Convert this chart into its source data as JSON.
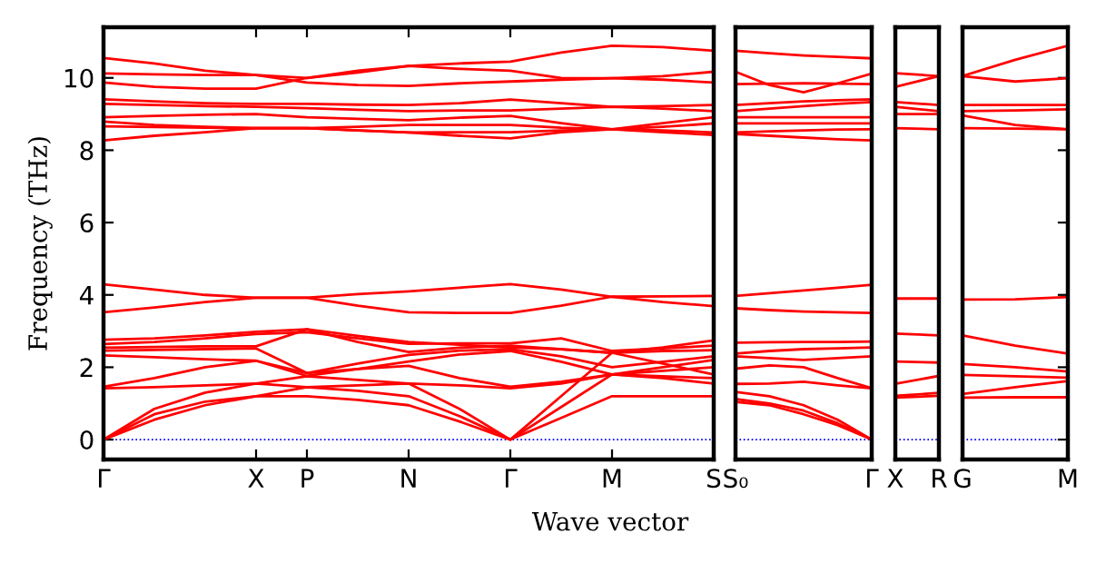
{
  "chart_data": [
    {
      "type": "line",
      "ylabel": "Frequency (THz)",
      "xlabel": "Wave vector",
      "ylim": [
        -0.55,
        11.4
      ],
      "yticks": [
        0,
        2,
        4,
        6,
        8,
        10
      ],
      "categories": [
        "Γ",
        null,
        null,
        "X",
        "P",
        null,
        "N",
        null,
        "Γ",
        null,
        "M",
        null,
        "S"
      ],
      "ref_lines": [
        {
          "axis": "y",
          "value": 0,
          "color": "#0000ff",
          "line_style": "dotted"
        }
      ],
      "series": [
        {
          "color": "#ff0000",
          "values": [
            0,
            0.55,
            0.95,
            1.2,
            1.2,
            1.1,
            0.95,
            0.5,
            0,
            0.6,
            1.2,
            1.2,
            1.2
          ]
        },
        {
          "color": "#ff0000",
          "values": [
            0,
            0.7,
            1.05,
            1.2,
            1.45,
            1.35,
            1.2,
            0.65,
            0,
            0.9,
            1.8,
            1.7,
            1.55
          ]
        },
        {
          "color": "#ff0000",
          "values": [
            0,
            0.85,
            1.3,
            1.55,
            1.75,
            1.65,
            1.55,
            0.85,
            0,
            1.2,
            2.4,
            2.1,
            1.8
          ]
        },
        {
          "color": "#ff0000",
          "values": [
            1.42,
            1.45,
            1.5,
            1.55,
            1.45,
            1.5,
            1.55,
            1.5,
            1.42,
            1.55,
            1.8,
            1.75,
            1.7
          ]
        },
        {
          "color": "#ff0000",
          "values": [
            1.46,
            1.7,
            2.0,
            2.18,
            1.84,
            1.95,
            2.04,
            1.7,
            1.46,
            1.6,
            1.8,
            1.9,
            2.0
          ]
        },
        {
          "color": "#ff0000",
          "values": [
            2.33,
            2.28,
            2.22,
            2.18,
            1.76,
            1.95,
            2.16,
            2.35,
            2.45,
            2.15,
            1.8,
            2.0,
            2.2
          ]
        },
        {
          "color": "#ff0000",
          "values": [
            2.46,
            2.48,
            2.5,
            2.52,
            1.84,
            2.1,
            2.34,
            2.46,
            2.5,
            2.3,
            2.0,
            2.15,
            2.3
          ]
        },
        {
          "color": "#ff0000",
          "values": [
            2.54,
            2.56,
            2.58,
            2.58,
            3.05,
            2.7,
            2.42,
            2.54,
            2.6,
            2.5,
            2.4,
            2.45,
            2.47
          ]
        },
        {
          "color": "#ff0000",
          "values": [
            2.76,
            2.8,
            2.88,
            2.98,
            3.05,
            2.87,
            2.7,
            2.62,
            2.55,
            2.5,
            2.4,
            2.55,
            2.74
          ]
        },
        {
          "color": "#ff0000",
          "values": [
            2.64,
            2.7,
            2.8,
            2.92,
            2.97,
            2.8,
            2.65,
            2.66,
            2.66,
            2.8,
            2.45,
            2.52,
            2.6
          ]
        },
        {
          "color": "#ff0000",
          "values": [
            4.29,
            4.15,
            4.0,
            3.92,
            3.92,
            4.02,
            4.1,
            4.2,
            4.3,
            4.15,
            3.95,
            3.96,
            3.97
          ]
        },
        {
          "color": "#ff0000",
          "values": [
            3.52,
            3.65,
            3.8,
            3.92,
            3.92,
            3.7,
            3.52,
            3.5,
            3.5,
            3.7,
            3.95,
            3.8,
            3.69
          ]
        },
        {
          "color": "#ff0000",
          "values": [
            10.55,
            10.4,
            10.2,
            10.08,
            10.0,
            10.15,
            10.33,
            10.4,
            10.45,
            10.7,
            10.89,
            10.85,
            10.75
          ]
        },
        {
          "color": "#ff0000",
          "values": [
            10.12,
            10.1,
            10.08,
            10.08,
            9.87,
            9.8,
            9.78,
            9.85,
            9.9,
            9.95,
            9.99,
            10.05,
            10.17
          ]
        },
        {
          "color": "#ff0000",
          "values": [
            9.87,
            9.75,
            9.7,
            9.7,
            10.0,
            10.2,
            10.33,
            10.25,
            10.2,
            10.0,
            9.99,
            9.95,
            9.87
          ]
        },
        {
          "color": "#ff0000",
          "values": [
            9.41,
            9.35,
            9.3,
            9.28,
            9.28,
            9.26,
            9.25,
            9.3,
            9.4,
            9.3,
            9.2,
            9.22,
            9.25
          ]
        },
        {
          "color": "#ff0000",
          "values": [
            9.28,
            9.25,
            9.22,
            9.2,
            9.16,
            9.12,
            9.08,
            9.1,
            9.1,
            9.15,
            9.2,
            9.15,
            9.08
          ]
        },
        {
          "color": "#ff0000",
          "values": [
            8.91,
            8.95,
            8.98,
            9.0,
            8.91,
            8.87,
            8.83,
            8.9,
            8.95,
            8.75,
            8.58,
            8.75,
            8.91
          ]
        },
        {
          "color": "#ff0000",
          "values": [
            8.79,
            8.7,
            8.65,
            8.61,
            8.61,
            8.65,
            8.7,
            8.7,
            8.7,
            8.62,
            8.58,
            8.65,
            8.74
          ]
        },
        {
          "color": "#ff0000",
          "values": [
            8.66,
            8.64,
            8.62,
            8.61,
            8.61,
            8.55,
            8.49,
            8.5,
            8.5,
            8.55,
            8.58,
            8.55,
            8.49
          ]
        },
        {
          "color": "#ff0000",
          "values": [
            8.27,
            8.4,
            8.5,
            8.61,
            8.61,
            8.55,
            8.49,
            8.4,
            8.33,
            8.5,
            8.58,
            8.5,
            8.42
          ]
        }
      ]
    },
    {
      "type": "line",
      "tick_labels": "x",
      "ylim": [
        -0.55,
        11.4
      ],
      "categories": [
        "S₀",
        null,
        null,
        null,
        "Γ"
      ],
      "ref_lines": [
        {
          "axis": "y",
          "value": 0,
          "color": "#0000ff",
          "line_style": "dotted"
        }
      ],
      "series": [
        {
          "color": "#ff0000",
          "values": [
            2.68,
            2.69,
            2.7,
            2.7,
            2.71
          ]
        },
        {
          "color": "#ff0000",
          "values": [
            2.38,
            2.45,
            2.5,
            2.52,
            2.55
          ]
        },
        {
          "color": "#ff0000",
          "values": [
            2.3,
            2.25,
            2.2,
            2.25,
            2.3
          ]
        },
        {
          "color": "#ff0000",
          "values": [
            1.96,
            2.05,
            2.0,
            1.7,
            1.42
          ]
        },
        {
          "color": "#ff0000",
          "values": [
            1.54,
            1.55,
            1.6,
            1.5,
            1.42
          ]
        },
        {
          "color": "#ff0000",
          "values": [
            1.32,
            1.2,
            0.95,
            0.55,
            0
          ]
        },
        {
          "color": "#ff0000",
          "values": [
            1.12,
            1.0,
            0.8,
            0.45,
            0
          ]
        },
        {
          "color": "#ff0000",
          "values": [
            1.04,
            0.95,
            0.7,
            0.4,
            0
          ]
        },
        {
          "color": "#ff0000",
          "values": [
            3.97,
            4.05,
            4.12,
            4.2,
            4.28
          ]
        },
        {
          "color": "#ff0000",
          "values": [
            3.63,
            3.58,
            3.54,
            3.52,
            3.5
          ]
        },
        {
          "color": "#ff0000",
          "values": [
            10.75,
            10.68,
            10.62,
            10.58,
            10.54
          ]
        },
        {
          "color": "#ff0000",
          "values": [
            10.17,
            9.8,
            9.6,
            9.85,
            10.12
          ]
        },
        {
          "color": "#ff0000",
          "values": [
            9.83,
            9.84,
            9.85,
            9.84,
            9.83
          ]
        },
        {
          "color": "#ff0000",
          "values": [
            9.25,
            9.3,
            9.35,
            9.38,
            9.41
          ]
        },
        {
          "color": "#ff0000",
          "values": [
            9.08,
            9.15,
            9.22,
            9.28,
            9.33
          ]
        },
        {
          "color": "#ff0000",
          "values": [
            8.91,
            8.91,
            8.91,
            8.91,
            8.91
          ]
        },
        {
          "color": "#ff0000",
          "values": [
            8.74,
            8.74,
            8.74,
            8.74,
            8.74
          ]
        },
        {
          "color": "#ff0000",
          "values": [
            8.49,
            8.52,
            8.55,
            8.57,
            8.58
          ]
        },
        {
          "color": "#ff0000",
          "values": [
            8.45,
            8.4,
            8.35,
            8.3,
            8.27
          ]
        }
      ]
    },
    {
      "type": "line",
      "tick_labels": "x",
      "ylim": [
        -0.55,
        11.4
      ],
      "categories": [
        "X",
        "R"
      ],
      "ref_lines": [
        {
          "axis": "y",
          "value": 0,
          "color": "#0000ff",
          "line_style": "dotted"
        }
      ],
      "series": [
        {
          "color": "#ff0000",
          "values": [
            2.93,
            2.88
          ]
        },
        {
          "color": "#ff0000",
          "values": [
            2.16,
            2.13
          ]
        },
        {
          "color": "#ff0000",
          "values": [
            1.54,
            1.76
          ]
        },
        {
          "color": "#ff0000",
          "values": [
            1.21,
            1.29
          ]
        },
        {
          "color": "#ff0000",
          "values": [
            1.16,
            1.21
          ]
        },
        {
          "color": "#ff0000",
          "values": [
            3.9,
            3.9
          ]
        },
        {
          "color": "#ff0000",
          "values": [
            10.13,
            10.05
          ]
        },
        {
          "color": "#ff0000",
          "values": [
            9.75,
            10.05
          ]
        },
        {
          "color": "#ff0000",
          "values": [
            9.33,
            9.25
          ]
        },
        {
          "color": "#ff0000",
          "values": [
            9.2,
            9.08
          ]
        },
        {
          "color": "#ff0000",
          "values": [
            9.0,
            9.0
          ]
        },
        {
          "color": "#ff0000",
          "values": [
            8.61,
            8.58
          ]
        }
      ]
    },
    {
      "type": "line",
      "tick_labels": "x",
      "ylim": [
        -0.55,
        11.4
      ],
      "yticks": [
        {
          "value": 0,
          "label": null
        },
        {
          "value": 2,
          "label": null
        },
        {
          "value": 4,
          "label": null
        },
        {
          "value": 6,
          "label": null
        },
        {
          "value": 8,
          "label": null
        },
        {
          "value": 10,
          "label": null
        }
      ],
      "categories": [
        "G",
        null,
        "M"
      ],
      "ref_lines": [
        {
          "axis": "y",
          "value": 0,
          "color": "#0000ff",
          "line_style": "dotted"
        }
      ],
      "series": [
        {
          "color": "#ff0000",
          "values": [
            2.88,
            2.6,
            2.38
          ]
        },
        {
          "color": "#ff0000",
          "values": [
            2.09,
            2.0,
            1.88
          ]
        },
        {
          "color": "#ff0000",
          "values": [
            1.79,
            1.75,
            1.71
          ]
        },
        {
          "color": "#ff0000",
          "values": [
            1.26,
            1.45,
            1.62
          ]
        },
        {
          "color": "#ff0000",
          "values": [
            1.16,
            1.17,
            1.17
          ]
        },
        {
          "color": "#ff0000",
          "values": [
            3.87,
            3.88,
            3.94
          ]
        },
        {
          "color": "#ff0000",
          "values": [
            10.05,
            10.5,
            10.89
          ]
        },
        {
          "color": "#ff0000",
          "values": [
            10.05,
            9.9,
            9.99
          ]
        },
        {
          "color": "#ff0000",
          "values": [
            9.25,
            9.25,
            9.25
          ]
        },
        {
          "color": "#ff0000",
          "values": [
            9.08,
            9.1,
            9.13
          ]
        },
        {
          "color": "#ff0000",
          "values": [
            8.96,
            8.7,
            8.58
          ]
        },
        {
          "color": "#ff0000",
          "values": [
            8.61,
            8.6,
            8.58
          ]
        }
      ]
    }
  ]
}
